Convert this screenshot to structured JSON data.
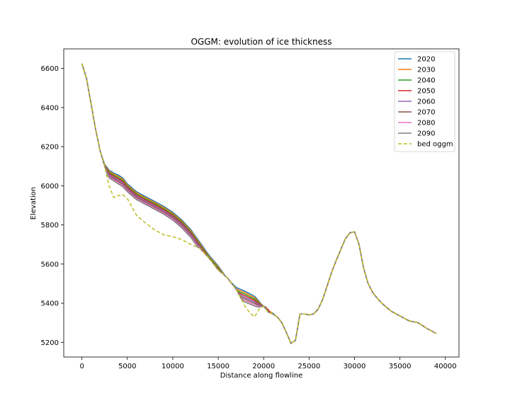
{
  "chart_data": {
    "type": "line",
    "title": "OGGM: evolution of ice thickness",
    "xlabel": "Distance along flowline",
    "ylabel": "Elevation",
    "xlim": [
      -2000,
      41500
    ],
    "ylim": [
      5125,
      6700
    ],
    "xticks": [
      0,
      5000,
      10000,
      15000,
      20000,
      25000,
      30000,
      35000,
      40000
    ],
    "yticks": [
      5200,
      5400,
      5600,
      5800,
      6000,
      6200,
      6400,
      6600
    ],
    "legend_position": "top-right",
    "series": [
      {
        "name": "2020",
        "color": "#1f77b4",
        "style": "solid"
      },
      {
        "name": "2030",
        "color": "#ff7f0e",
        "style": "solid"
      },
      {
        "name": "2040",
        "color": "#2ca02c",
        "style": "solid"
      },
      {
        "name": "2050",
        "color": "#d62728",
        "style": "solid"
      },
      {
        "name": "2060",
        "color": "#9467bd",
        "style": "solid"
      },
      {
        "name": "2070",
        "color": "#8c564b",
        "style": "solid"
      },
      {
        "name": "2080",
        "color": "#e377c2",
        "style": "solid"
      },
      {
        "name": "2090",
        "color": "#7f7f7f",
        "style": "solid"
      },
      {
        "name": "bed oggm",
        "color": "#bcbd22",
        "style": "dashed"
      }
    ],
    "surface_2020": {
      "x": [
        0,
        500,
        1000,
        1500,
        2000,
        2500,
        3000,
        3500,
        4000,
        4500,
        5000,
        6000,
        7000,
        8000,
        9000,
        10000,
        11000,
        12000,
        13000,
        14000,
        15000,
        16000,
        17000,
        18000,
        19000,
        19500,
        20000,
        20500,
        21000
      ],
      "y": [
        6625,
        6550,
        6420,
        6290,
        6180,
        6110,
        6080,
        6065,
        6055,
        6040,
        6010,
        5970,
        5945,
        5920,
        5895,
        5865,
        5825,
        5775,
        5710,
        5645,
        5590,
        5525,
        5480,
        5460,
        5435,
        5410,
        5380,
        5355,
        5350
      ]
    },
    "surface_2090": {
      "x": [
        0,
        500,
        1000,
        1500,
        2000,
        2500,
        3000,
        3500,
        4000,
        4500,
        5000,
        6000,
        7000,
        8000,
        9000,
        10000,
        11000,
        12000,
        13000,
        14000,
        15000,
        16000,
        17000,
        18000,
        19000,
        19500,
        20000
      ],
      "y": [
        6620,
        6545,
        6410,
        6280,
        6160,
        6090,
        6040,
        6025,
        6010,
        5995,
        5970,
        5930,
        5905,
        5880,
        5855,
        5825,
        5785,
        5735,
        5670,
        5605,
        5555,
        5505,
        5430,
        5405,
        5385,
        5380,
        5385
      ]
    },
    "bed_oggm": {
      "x": [
        0,
        500,
        1000,
        1500,
        2000,
        2500,
        3000,
        3500,
        4000,
        4500,
        5000,
        6000,
        7000,
        8000,
        9000,
        10000,
        11000,
        12000,
        13000,
        14000,
        15000,
        16000,
        17000,
        18000,
        18500,
        19000,
        19500,
        20000,
        20500,
        21000,
        21500,
        22000,
        22500,
        23000,
        23500,
        24000,
        24500,
        25000,
        25500,
        26000,
        26500,
        27000,
        27500,
        28000,
        28500,
        29000,
        29500,
        30000,
        30500,
        31000,
        31500,
        32000,
        32500,
        33000,
        34000,
        35000,
        36000,
        37000,
        38000,
        39000
      ],
      "y": [
        6625,
        6550,
        6420,
        6290,
        6180,
        6100,
        6000,
        5940,
        5950,
        5955,
        5935,
        5850,
        5810,
        5775,
        5750,
        5740,
        5725,
        5700,
        5680,
        5630,
        5570,
        5530,
        5470,
        5380,
        5350,
        5330,
        5370,
        5385,
        5355,
        5345,
        5330,
        5300,
        5250,
        5195,
        5210,
        5345,
        5345,
        5340,
        5345,
        5370,
        5420,
        5490,
        5560,
        5620,
        5675,
        5730,
        5760,
        5765,
        5700,
        5580,
        5500,
        5455,
        5425,
        5400,
        5360,
        5335,
        5310,
        5300,
        5270,
        5245
      ]
    }
  }
}
